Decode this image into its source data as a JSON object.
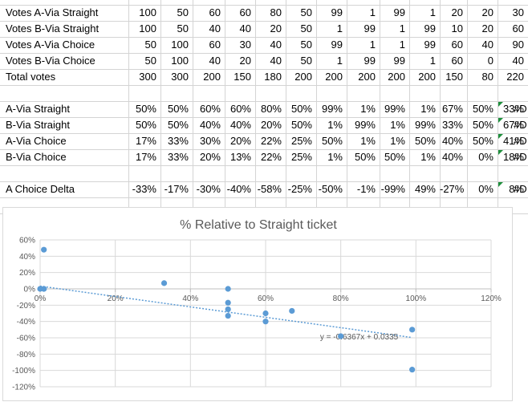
{
  "sheet": {
    "rows": [
      {
        "label": "Votes A-Via Straight",
        "values": [
          "100",
          "50",
          "60",
          "60",
          "80",
          "50",
          "99",
          "1",
          "99",
          "1",
          "20",
          "20",
          "30"
        ]
      },
      {
        "label": "Votes B-Via Straight",
        "values": [
          "100",
          "50",
          "40",
          "40",
          "20",
          "50",
          "1",
          "99",
          "1",
          "99",
          "10",
          "20",
          "60"
        ]
      },
      {
        "label": "Votes A-Via Choice",
        "values": [
          "50",
          "100",
          "60",
          "30",
          "40",
          "50",
          "99",
          "1",
          "1",
          "99",
          "60",
          "40",
          "90"
        ]
      },
      {
        "label": "Votes B-Via Choice",
        "values": [
          "50",
          "100",
          "40",
          "20",
          "40",
          "50",
          "1",
          "99",
          "99",
          "1",
          "60",
          "0",
          "40"
        ]
      },
      {
        "label": "Total votes",
        "values": [
          "300",
          "300",
          "200",
          "150",
          "180",
          "200",
          "200",
          "200",
          "200",
          "200",
          "150",
          "80",
          "220"
        ]
      },
      {
        "label": "",
        "values": []
      },
      {
        "label": "A-Via Straight",
        "values": [
          "50%",
          "50%",
          "60%",
          "60%",
          "80%",
          "50%",
          "99%",
          "1%",
          "99%",
          "1%",
          "67%",
          "50%",
          "33%"
        ],
        "tail": "#D"
      },
      {
        "label": "B-Via Straight",
        "values": [
          "50%",
          "50%",
          "40%",
          "40%",
          "20%",
          "50%",
          "1%",
          "99%",
          "1%",
          "99%",
          "33%",
          "50%",
          "67%"
        ],
        "tail": "#D"
      },
      {
        "label": "A-Via Choice",
        "values": [
          "17%",
          "33%",
          "30%",
          "20%",
          "22%",
          "25%",
          "50%",
          "1%",
          "1%",
          "50%",
          "40%",
          "50%",
          "41%"
        ],
        "tail": "#D"
      },
      {
        "label": "B-Via Choice",
        "values": [
          "17%",
          "33%",
          "20%",
          "13%",
          "22%",
          "25%",
          "1%",
          "50%",
          "50%",
          "1%",
          "40%",
          "0%",
          "18%"
        ],
        "tail": "#D"
      },
      {
        "label": "",
        "values": []
      },
      {
        "label": "A Choice Delta",
        "values": [
          "-33%",
          "-17%",
          "-30%",
          "-40%",
          "-58%",
          "-25%",
          "-50%",
          "-1%",
          "-99%",
          "49%",
          "-27%",
          "0%",
          "8%"
        ],
        "tail": "#D"
      }
    ]
  },
  "chart_data": {
    "type": "scatter",
    "title": "% Relative to Straight ticket",
    "xlabel": "",
    "ylabel": "",
    "xlim": [
      0,
      1.2
    ],
    "ylim": [
      -1.2,
      0.6
    ],
    "x_ticks": [
      "0%",
      "20%",
      "40%",
      "60%",
      "80%",
      "100%",
      "120%"
    ],
    "y_ticks": [
      "60%",
      "40%",
      "20%",
      "0%",
      "-20%",
      "-40%",
      "-60%",
      "-80%",
      "-100%",
      "-120%"
    ],
    "grid": true,
    "series": [
      {
        "points": [
          [
            0.0,
            0.0
          ],
          [
            0.01,
            0.0
          ],
          [
            0.01,
            0.0
          ],
          [
            0.01,
            0.48
          ],
          [
            0.33,
            0.07
          ],
          [
            0.5,
            0.0
          ],
          [
            0.5,
            -0.17
          ],
          [
            0.5,
            -0.25
          ],
          [
            0.5,
            -0.33
          ],
          [
            0.6,
            -0.3
          ],
          [
            0.6,
            -0.4
          ],
          [
            0.67,
            -0.27
          ],
          [
            0.8,
            -0.58
          ],
          [
            0.99,
            -0.5
          ],
          [
            0.99,
            -0.99
          ]
        ],
        "color": "#5b9bd5"
      }
    ],
    "trendline": {
      "slope": -0.6367,
      "intercept": 0.0335,
      "label": "y = -0.6367x + 0.0335",
      "color": "#5b9bd5"
    }
  }
}
